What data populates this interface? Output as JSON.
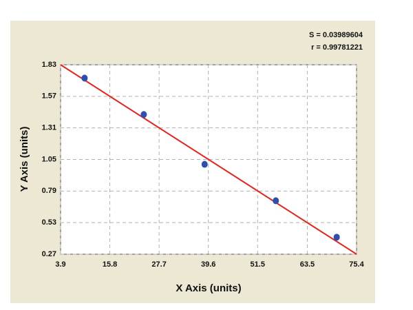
{
  "chart_data": {
    "type": "scatter",
    "x_label": "X Axis (units)",
    "y_label": "Y Axis (units)",
    "annotations": [
      "S = 0.03989604",
      "r = 0.99781221"
    ],
    "x": [
      9.7,
      24.0,
      38.7,
      55.9,
      70.6
    ],
    "values": [
      1.72,
      1.42,
      1.01,
      0.71,
      0.41
    ],
    "color": "#2e4fb0",
    "fit_line": {
      "x": [
        3.9,
        75.4
      ],
      "values": [
        1.83,
        0.27
      ],
      "color": "#e8211c"
    },
    "xlim": [
      3.9,
      75.4
    ],
    "xticks": [
      3.9,
      15.8,
      27.7,
      39.6,
      51.5,
      63.5,
      75.4
    ],
    "ylim": [
      0.27,
      1.83
    ],
    "yticks": [
      0.27,
      0.53,
      0.79,
      1.05,
      1.31,
      1.57,
      1.83
    ],
    "grid": true
  }
}
